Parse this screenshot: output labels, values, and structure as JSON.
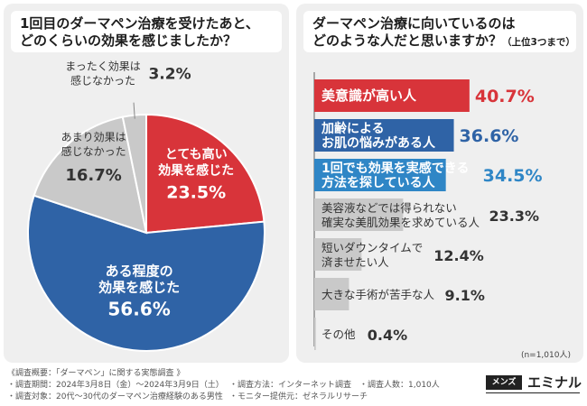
{
  "left_question": [
    "1回目のダーマペン治療を受けたあと、",
    "どのくらいの効果を感じましたか？"
  ],
  "right_question": [
    "ダーマペン治療に向いているのは",
    "どのような人だと思いますか？"
  ],
  "right_question_suffix": "（上位3つまで）",
  "colors": {
    "red": "#d8343a",
    "blue": "#2f63a6",
    "lightblue": "#2f86c6",
    "gray": "#c9c9c9",
    "panel": "#efefef"
  },
  "chart_data": [
    {
      "type": "pie",
      "slices": [
        {
          "label": "とても高い効果を感じた",
          "label_lines": [
            "とても高い",
            "効果を感じた"
          ],
          "value": 23.5,
          "value_text": "23.5%",
          "color": "#d8343a"
        },
        {
          "label": "ある程度の効果を感じた",
          "label_lines": [
            "ある程度の",
            "効果を感じた"
          ],
          "value": 56.6,
          "value_text": "56.6%",
          "color": "#2f63a6"
        },
        {
          "label": "あまり効果は感じなかった",
          "label_lines": [
            "あまり効果は",
            "感じなかった"
          ],
          "value": 16.7,
          "value_text": "16.7%",
          "color": "#c9c9c9"
        },
        {
          "label": "まったく効果は感じなかった",
          "label_lines": [
            "まったく効果は",
            "感じなかった"
          ],
          "value": 3.2,
          "value_text": "3.2%",
          "color": "#c9c9c9"
        }
      ]
    },
    {
      "type": "bar",
      "orientation": "horizontal",
      "xlim": [
        0,
        45
      ],
      "bars": [
        {
          "label": "美意識が高い人",
          "label_lines": [
            "美意識が高い人"
          ],
          "value": 40.7,
          "value_text": "40.7%",
          "color": "#d8343a"
        },
        {
          "label": "加齢によるお肌の悩みがある人",
          "label_lines": [
            "加齢による",
            "お肌の悩みがある人"
          ],
          "value": 36.6,
          "value_text": "36.6%",
          "color": "#2f63a6"
        },
        {
          "label": "1回でも効果を実感できる方法を探している人",
          "label_lines": [
            "1回でも効果を実感できる",
            "方法を探している人"
          ],
          "value": 34.5,
          "value_text": "34.5%",
          "color": "#2f86c6"
        },
        {
          "label": "美容液などでは得られない確実な美肌効果を求めている人",
          "label_lines": [
            "美容液などでは得られない",
            "確実な美肌効果を求めている人"
          ],
          "value": 23.3,
          "value_text": "23.3%",
          "color": "#c9c9c9"
        },
        {
          "label": "短いダウンタイムで済ませたい人",
          "label_lines": [
            "短いダウンタイムで",
            "済ませたい人"
          ],
          "value": 12.4,
          "value_text": "12.4%",
          "color": "#c9c9c9"
        },
        {
          "label": "大きな手術が苦手な人",
          "label_lines": [
            "大きな手術が苦手な人"
          ],
          "value": 9.1,
          "value_text": "9.1%",
          "color": "#c9c9c9"
        },
        {
          "label": "その他",
          "label_lines": [
            "その他"
          ],
          "value": 0.4,
          "value_text": "0.4%",
          "color": "#c9c9c9"
        }
      ]
    }
  ],
  "n_note": "(n=1,010人)",
  "footer": {
    "title": "《調査概要：「ダーマペン」に関する実態調査 》",
    "period": "・調査期間：2024年3月8日（金）〜2024年3月9日（土）",
    "target": "・調査対象：20代〜30代のダーマペン治療経験のある男性",
    "method": "・調査方法：インターネット調査",
    "monitor": "・モニター提供元：ゼネラルリサーチ",
    "count": "・調査人数：1,010人"
  },
  "logo": {
    "badge": "メンズ",
    "name": "エミナル"
  }
}
